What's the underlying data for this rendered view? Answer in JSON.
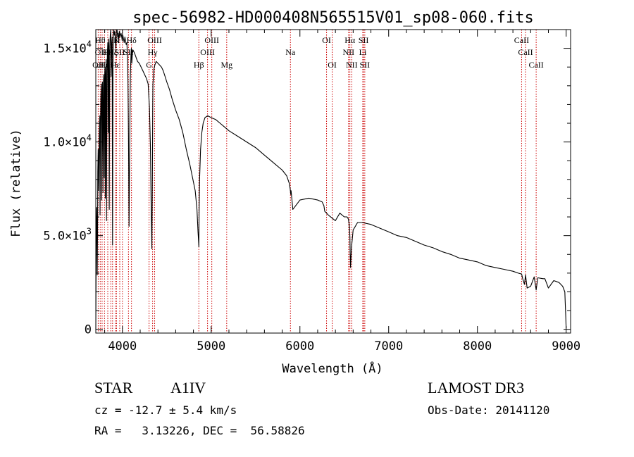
{
  "chart_data": {
    "type": "line",
    "title": "spec-56982-HD000408N565515V01_sp08-060.fits",
    "xlabel": "Wavelength (Å)",
    "ylabel": "Flux (relative)",
    "xlim": [
      3700,
      9050
    ],
    "ylim": [
      -200,
      16000
    ],
    "x_ticks": [
      4000,
      5000,
      6000,
      7000,
      8000,
      9000
    ],
    "y_ticks": [
      {
        "value": 0,
        "mantissa": "0",
        "exponent": ""
      },
      {
        "value": 5000,
        "mantissa": "5.0×10",
        "exponent": "3"
      },
      {
        "value": 10000,
        "mantissa": "1.0×10",
        "exponent": "4"
      },
      {
        "value": 15000,
        "mantissa": "1.5×10",
        "exponent": "4"
      }
    ],
    "series": [
      {
        "name": "flux",
        "color": "#000000",
        "x": [
          3700,
          3705,
          3710,
          3712,
          3716,
          3720,
          3722,
          3727,
          3732,
          3734,
          3740,
          3745,
          3748,
          3752,
          3757,
          3763,
          3766,
          3772,
          3775,
          3781,
          3785,
          3789,
          3795,
          3798,
          3803,
          3807,
          3812,
          3816,
          3821,
          3826,
          3830,
          3835,
          3839,
          3842,
          3847,
          3852,
          3858,
          3863,
          3868,
          3872,
          3878,
          3884,
          3889,
          3894,
          3898,
          3903,
          3909,
          3914,
          3920,
          3926,
          3932,
          3936,
          3940,
          3946,
          3952,
          3958,
          3964,
          3968,
          3972,
          3978,
          3985,
          3992,
          3998,
          4005,
          4012,
          4020,
          4028,
          4035,
          4042,
          4050,
          4056,
          4062,
          4068,
          4075,
          4082,
          4090,
          4096,
          4101,
          4106,
          4112,
          4120,
          4130,
          4140,
          4155,
          4170,
          4190,
          4210,
          4230,
          4250,
          4270,
          4290,
          4305,
          4315,
          4325,
          4332,
          4338,
          4341,
          4344,
          4350,
          4356,
          4365,
          4380,
          4400,
          4420,
          4440,
          4460,
          4480,
          4500,
          4530,
          4560,
          4600,
          4640,
          4680,
          4720,
          4760,
          4790,
          4820,
          4840,
          4852,
          4858,
          4861,
          4864,
          4870,
          4880,
          4895,
          4910,
          4930,
          4960,
          5000,
          5050,
          5100,
          5150,
          5200,
          5300,
          5400,
          5500,
          5600,
          5700,
          5800,
          5850,
          5880,
          5890,
          5896,
          5900,
          5920,
          6000,
          6100,
          6200,
          6250,
          6270,
          6280,
          6300,
          6320,
          6400,
          6450,
          6500,
          6530,
          6545,
          6555,
          6560,
          6563,
          6566,
          6570,
          6580,
          6600,
          6650,
          6700,
          6800,
          6900,
          7000,
          7100,
          7200,
          7300,
          7400,
          7500,
          7600,
          7700,
          7800,
          7900,
          8000,
          8100,
          8200,
          8300,
          8400,
          8460,
          8498,
          8510,
          8530,
          8542,
          8560,
          8600,
          8640,
          8662,
          8680,
          8740,
          8760,
          8800,
          8860,
          8920,
          8960,
          8985,
          8990,
          8995,
          9000
        ],
        "y": [
          0,
          4800,
          6500,
          5800,
          2900,
          5200,
          8400,
          9600,
          7400,
          8200,
          10400,
          11400,
          6100,
          10600,
          12400,
          13100,
          6900,
          12300,
          13200,
          7300,
          12900,
          13600,
          8100,
          13200,
          14000,
          7000,
          13600,
          14400,
          5800,
          13800,
          14700,
          15300,
          10500,
          14900,
          15500,
          6400,
          15100,
          15700,
          16000,
          13500,
          15200,
          15600,
          4500,
          14000,
          15800,
          16000,
          15700,
          15900,
          15500,
          15000,
          15800,
          16000,
          16000,
          15600,
          15800,
          15300,
          15900,
          15900,
          15600,
          15700,
          15800,
          15600,
          15400,
          15700,
          15500,
          15300,
          15600,
          15400,
          15200,
          15300,
          14700,
          13300,
          10300,
          5500,
          9800,
          13600,
          14600,
          15000,
          14200,
          14700,
          14900,
          14800,
          14700,
          14500,
          14300,
          14200,
          14000,
          13800,
          13600,
          13400,
          13100,
          11800,
          9800,
          6200,
          4300,
          8700,
          11800,
          13100,
          13500,
          13900,
          14100,
          14300,
          14200,
          14100,
          14000,
          13800,
          13500,
          13200,
          12800,
          12300,
          11700,
          11200,
          10500,
          9600,
          8800,
          8100,
          7400,
          6400,
          5200,
          4700,
          4400,
          6200,
          8100,
          9600,
          10500,
          11000,
          11300,
          11400,
          11300,
          11200,
          11000,
          10800,
          10600,
          10300,
          10000,
          9700,
          9300,
          8900,
          8500,
          8200,
          7800,
          7500,
          7200,
          7400,
          6400,
          6900,
          7000,
          6900,
          6800,
          6600,
          6300,
          6200,
          6100,
          5800,
          6200,
          6000,
          6000,
          5900,
          5600,
          5300,
          4900,
          4100,
          3300,
          4300,
          5300,
          5700,
          5700,
          5600,
          5400,
          5200,
          5000,
          4900,
          4700,
          4500,
          4350,
          4150,
          4000,
          3800,
          3700,
          3600,
          3400,
          3300,
          3200,
          3100,
          3000,
          2950,
          2700,
          2400,
          2900,
          2200,
          2300,
          2800,
          2100,
          2750,
          2700,
          2700,
          2200,
          2600,
          2500,
          2300,
          2000,
          1400,
          700,
          50
        ]
      }
    ],
    "line_marks": [
      {
        "wavelength": 3727,
        "label": "OII",
        "row": 3
      },
      {
        "wavelength": 3750,
        "label": "Hθ",
        "row": 1
      },
      {
        "wavelength": 3771,
        "label": "OIII",
        "row": 2
      },
      {
        "wavelength": 3798,
        "label": "Hε",
        "row": 3
      },
      {
        "wavelength": 3835,
        "label": "Hη",
        "row": 2
      },
      {
        "wavelength": 3869,
        "label": "",
        "row": 0
      },
      {
        "wavelength": 3889,
        "label": "Hζ",
        "row": 2
      },
      {
        "wavelength": 3920,
        "label": "Hε",
        "row": 3
      },
      {
        "wavelength": 3934,
        "label": "K",
        "row": 1
      },
      {
        "wavelength": 3970,
        "label": "SII",
        "row": 2
      },
      {
        "wavelength": 4000,
        "label": "",
        "row": 0
      },
      {
        "wavelength": 4068,
        "label": "SII",
        "row": 2
      },
      {
        "wavelength": 4102,
        "label": "Hδ",
        "row": 1
      },
      {
        "wavelength": 4300,
        "label": "G",
        "row": 3
      },
      {
        "wavelength": 4340,
        "label": "Hγ",
        "row": 2
      },
      {
        "wavelength": 4363,
        "label": "OIII",
        "row": 1
      },
      {
        "wavelength": 4861,
        "label": "Hβ",
        "row": 3
      },
      {
        "wavelength": 4959,
        "label": "OIII",
        "row": 2
      },
      {
        "wavelength": 5007,
        "label": "OIII",
        "row": 1
      },
      {
        "wavelength": 5175,
        "label": "Mg",
        "row": 3
      },
      {
        "wavelength": 5893,
        "label": "Na",
        "row": 2
      },
      {
        "wavelength": 6300,
        "label": "OI",
        "row": 1
      },
      {
        "wavelength": 6364,
        "label": "OI",
        "row": 3
      },
      {
        "wavelength": 6548,
        "label": "NII",
        "row": 2
      },
      {
        "wavelength": 6563,
        "label": "Hα",
        "row": 1
      },
      {
        "wavelength": 6584,
        "label": "NII",
        "row": 3
      },
      {
        "wavelength": 6708,
        "label": "Li",
        "row": 2
      },
      {
        "wavelength": 6717,
        "label": "SII",
        "row": 1
      },
      {
        "wavelength": 6731,
        "label": "SII",
        "row": 3
      },
      {
        "wavelength": 8498,
        "label": "CaII",
        "row": 1
      },
      {
        "wavelength": 8542,
        "label": "CaII",
        "row": 2
      },
      {
        "wavelength": 8662,
        "label": "CaII",
        "row": 3
      }
    ],
    "line_mark_color": "#cc0000"
  },
  "info": {
    "obj_class": "STAR",
    "subclass": "A1IV",
    "cz": "cz = -12.7 ± 5.4 km/s",
    "coords": "RA =   3.13226, DEC =  56.58826",
    "survey": "LAMOST DR3",
    "obs_date": "Obs-Date: 20141120"
  }
}
